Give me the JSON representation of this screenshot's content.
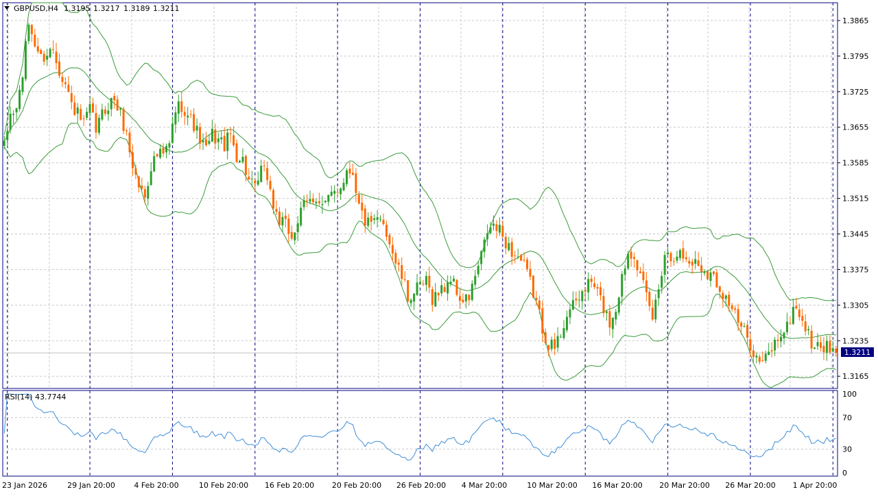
{
  "header": {
    "symbol": "GBPUSD,H4",
    "open": "1.3195",
    "high": "1.3217",
    "low": "1.3189",
    "close": "1.3211",
    "menu_icon": "triangle-down-icon"
  },
  "colors": {
    "background": "#ffffff",
    "frame": "#000080",
    "grid": "#c8c8c8",
    "separator": "#000080",
    "bull": "#2ca02c",
    "bear": "#ff6a00",
    "bands": "#3a9a3a",
    "rsi_line": "#3c8dd8",
    "price_tag_bg": "#000080",
    "text": "#000000"
  },
  "price_tag": "1.3211",
  "rsi_label": "RSI(14) 43.7744",
  "chart_data": [
    {
      "type": "candlestick",
      "title": "GBPUSD,H4",
      "y_ticks": [
        "1.3865",
        "1.3795",
        "1.3725",
        "1.3655",
        "1.3585",
        "1.3515",
        "1.3445",
        "1.3375",
        "1.3305",
        "1.3235",
        "1.3165"
      ],
      "ylim": [
        1.3141,
        1.39
      ],
      "x_ticks": [
        "23 Jan 2026",
        "29 Jan 20:00",
        "4 Feb 20:00",
        "10 Feb 20:00",
        "16 Feb 20:00",
        "20 Feb 20:00",
        "26 Feb 20:00",
        "4 Mar 20:00",
        "10 Mar 20:00",
        "16 Mar 20:00",
        "20 Mar 20:00",
        "26 Mar 20:00",
        "1 Apr 20:00"
      ],
      "grid": true,
      "last_price": 1.3211,
      "close_path": [
        [
          0,
          1.3615
        ],
        [
          2,
          1.368
        ],
        [
          4,
          1.369
        ],
        [
          6,
          1.376
        ],
        [
          8,
          1.386
        ],
        [
          10,
          1.382
        ],
        [
          12,
          1.379
        ],
        [
          14,
          1.38
        ],
        [
          16,
          1.381
        ],
        [
          18,
          1.377
        ],
        [
          20,
          1.374
        ],
        [
          22,
          1.37
        ],
        [
          24,
          1.368
        ],
        [
          26,
          1.366
        ],
        [
          28,
          1.369
        ],
        [
          30,
          1.365
        ],
        [
          32,
          1.368
        ],
        [
          34,
          1.37
        ],
        [
          36,
          1.371
        ],
        [
          38,
          1.368
        ],
        [
          40,
          1.364
        ],
        [
          42,
          1.358
        ],
        [
          44,
          1.354
        ],
        [
          46,
          1.352
        ],
        [
          48,
          1.358
        ],
        [
          50,
          1.36
        ],
        [
          52,
          1.36
        ],
        [
          54,
          1.362
        ],
        [
          56,
          1.369
        ],
        [
          58,
          1.37
        ],
        [
          60,
          1.368
        ],
        [
          62,
          1.366
        ],
        [
          64,
          1.363
        ],
        [
          66,
          1.361
        ],
        [
          68,
          1.364
        ],
        [
          70,
          1.363
        ],
        [
          72,
          1.362
        ],
        [
          74,
          1.364
        ],
        [
          76,
          1.36
        ],
        [
          78,
          1.359
        ],
        [
          80,
          1.355
        ],
        [
          82,
          1.353
        ],
        [
          84,
          1.357
        ],
        [
          86,
          1.356
        ],
        [
          88,
          1.35
        ],
        [
          90,
          1.347
        ],
        [
          92,
          1.346
        ],
        [
          94,
          1.344
        ],
        [
          96,
          1.347
        ],
        [
          98,
          1.35
        ],
        [
          100,
          1.351
        ],
        [
          102,
          1.352
        ],
        [
          104,
          1.35
        ],
        [
          106,
          1.351
        ],
        [
          108,
          1.353
        ],
        [
          110,
          1.354
        ],
        [
          112,
          1.357
        ],
        [
          114,
          1.357
        ],
        [
          116,
          1.35
        ],
        [
          118,
          1.347
        ],
        [
          120,
          1.346
        ],
        [
          122,
          1.347
        ],
        [
          124,
          1.347
        ],
        [
          126,
          1.343
        ],
        [
          128,
          1.339
        ],
        [
          130,
          1.336
        ],
        [
          132,
          1.332
        ],
        [
          134,
          1.333
        ],
        [
          136,
          1.334
        ],
        [
          138,
          1.335
        ],
        [
          140,
          1.332
        ],
        [
          142,
          1.333
        ],
        [
          144,
          1.334
        ],
        [
          146,
          1.336
        ],
        [
          148,
          1.333
        ],
        [
          150,
          1.331
        ],
        [
          152,
          1.332
        ],
        [
          154,
          1.336
        ],
        [
          156,
          1.34
        ],
        [
          158,
          1.345
        ],
        [
          160,
          1.346
        ],
        [
          162,
          1.345
        ],
        [
          164,
          1.343
        ],
        [
          166,
          1.341
        ],
        [
          168,
          1.34
        ],
        [
          170,
          1.338
        ],
        [
          172,
          1.335
        ],
        [
          174,
          1.331
        ],
        [
          176,
          1.326
        ],
        [
          178,
          1.323
        ],
        [
          180,
          1.322
        ],
        [
          182,
          1.325
        ],
        [
          184,
          1.329
        ],
        [
          186,
          1.33
        ],
        [
          188,
          1.332
        ],
        [
          190,
          1.334
        ],
        [
          192,
          1.335
        ],
        [
          194,
          1.333
        ],
        [
          196,
          1.33
        ],
        [
          198,
          1.327
        ],
        [
          200,
          1.33
        ],
        [
          202,
          1.336
        ],
        [
          204,
          1.341
        ],
        [
          206,
          1.341
        ],
        [
          208,
          1.336
        ],
        [
          210,
          1.332
        ],
        [
          212,
          1.328
        ],
        [
          214,
          1.334
        ],
        [
          216,
          1.341
        ],
        [
          218,
          1.34
        ],
        [
          220,
          1.341
        ],
        [
          222,
          1.34
        ],
        [
          224,
          1.339
        ],
        [
          226,
          1.339
        ],
        [
          228,
          1.338
        ],
        [
          230,
          1.337
        ],
        [
          232,
          1.336
        ],
        [
          234,
          1.334
        ],
        [
          236,
          1.332
        ],
        [
          238,
          1.33
        ],
        [
          240,
          1.327
        ],
        [
          242,
          1.325
        ],
        [
          244,
          1.323
        ],
        [
          246,
          1.32
        ],
        [
          248,
          1.319
        ],
        [
          250,
          1.321
        ],
        [
          252,
          1.323
        ],
        [
          254,
          1.325
        ],
        [
          256,
          1.326
        ],
        [
          258,
          1.33
        ],
        [
          260,
          1.329
        ],
        [
          262,
          1.326
        ],
        [
          264,
          1.323
        ],
        [
          266,
          1.322
        ],
        [
          268,
          1.3225
        ],
        [
          270,
          1.3215
        ],
        [
          272,
          1.3211
        ]
      ]
    },
    {
      "type": "line",
      "title": "RSI(14) 43.7744",
      "series": [
        {
          "name": "RSI(14)"
        }
      ],
      "y_ticks": [
        "100",
        "70",
        "30",
        "0"
      ],
      "ylim": [
        0,
        100
      ],
      "levels": [
        70,
        30
      ],
      "last_value": 43.7744
    }
  ]
}
